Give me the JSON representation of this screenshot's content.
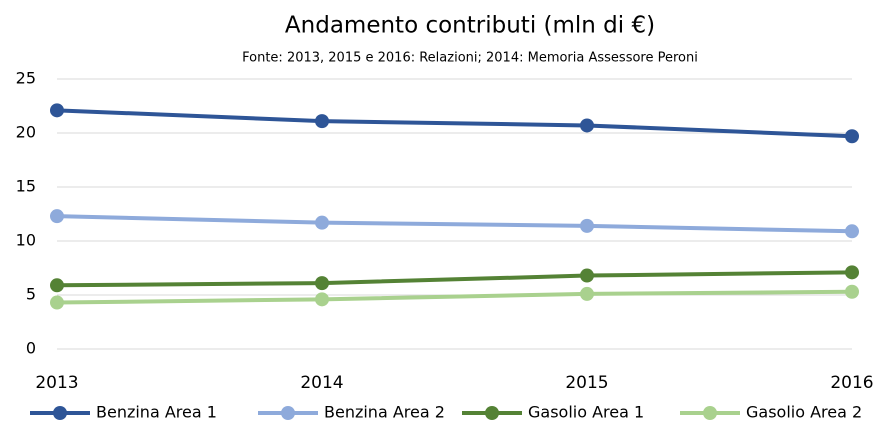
{
  "chart_data": {
    "type": "line",
    "title": "Andamento contributi (mln di €)",
    "subtitle": "Fonte: 2013, 2015 e 2016: Relazioni; 2014: Memoria Assessore Peroni",
    "categories": [
      "2013",
      "2014",
      "2015",
      "2016"
    ],
    "series": [
      {
        "name": "Benzina Area 1",
        "color": "#2e5597",
        "values": [
          22.1,
          21.1,
          20.7,
          19.7
        ]
      },
      {
        "name": "Benzina Area 2",
        "color": "#8eaadb",
        "values": [
          12.3,
          11.7,
          11.4,
          10.9
        ]
      },
      {
        "name": "Gasolio Area 1",
        "color": "#548235",
        "values": [
          5.9,
          6.1,
          6.8,
          7.1
        ]
      },
      {
        "name": "Gasolio Area 2",
        "color": "#a9d18e",
        "values": [
          4.3,
          4.6,
          5.1,
          5.3
        ]
      }
    ],
    "ylim": [
      0,
      25
    ],
    "yticks": [
      0,
      5,
      10,
      15,
      20,
      25
    ],
    "grid": true,
    "legend": "bottom"
  }
}
